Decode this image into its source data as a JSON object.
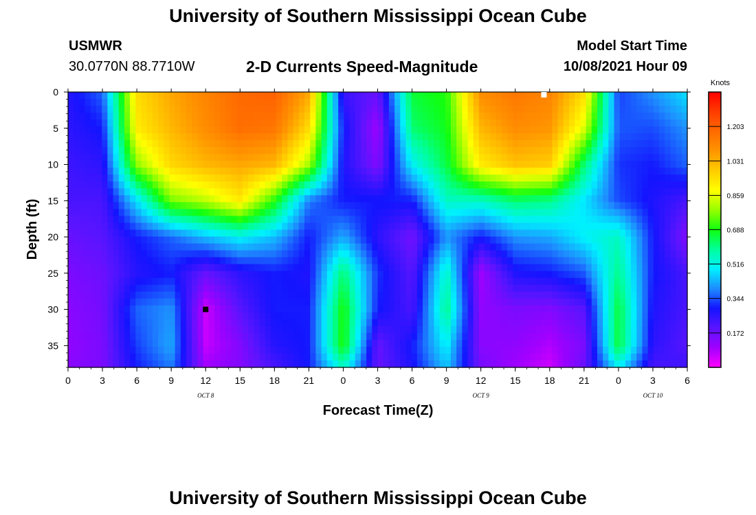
{
  "page": {
    "title_top": "University of Southern Mississippi Ocean Cube",
    "title_bottom": "University of Southern Mississippi Ocean Cube",
    "station_id": "USMWR",
    "station_coords": "30.0770N  88.7710W",
    "plot_title": "2-D Currents Speed-Magnitude",
    "model_start_label": "Model Start Time",
    "model_start_value": "10/08/2021 Hour 09"
  },
  "chart_data": {
    "type": "heatmap",
    "title": "2-D Currents Speed-Magnitude",
    "xlabel": "Forecast Time(Z)",
    "ylabel": "Depth (ft)",
    "x_range_hours": [
      0,
      54
    ],
    "x_ticks": [
      {
        "h": 0,
        "label": "0"
      },
      {
        "h": 3,
        "label": "3"
      },
      {
        "h": 6,
        "label": "6"
      },
      {
        "h": 9,
        "label": "9"
      },
      {
        "h": 12,
        "label": "12"
      },
      {
        "h": 15,
        "label": "15"
      },
      {
        "h": 18,
        "label": "18"
      },
      {
        "h": 21,
        "label": "21"
      },
      {
        "h": 24,
        "label": "0"
      },
      {
        "h": 27,
        "label": "3"
      },
      {
        "h": 30,
        "label": "6"
      },
      {
        "h": 33,
        "label": "9"
      },
      {
        "h": 36,
        "label": "12"
      },
      {
        "h": 39,
        "label": "15"
      },
      {
        "h": 42,
        "label": "18"
      },
      {
        "h": 45,
        "label": "21"
      },
      {
        "h": 48,
        "label": "0"
      },
      {
        "h": 51,
        "label": "3"
      },
      {
        "h": 54,
        "label": "6"
      }
    ],
    "date_labels": [
      {
        "h": 12,
        "label": "OCT 8"
      },
      {
        "h": 36,
        "label": "OCT 9"
      },
      {
        "h": 51,
        "label": "OCT 10"
      }
    ],
    "y_range_ft": [
      0,
      38
    ],
    "y_ticks": [
      0,
      5,
      10,
      15,
      20,
      25,
      30,
      35
    ],
    "colorbar": {
      "label": "Knots",
      "min": 0.0,
      "max": 1.375,
      "tick_values": [
        0.172,
        0.344,
        0.516,
        0.688,
        0.859,
        1.031,
        1.203
      ],
      "tick_labels": [
        "0.172",
        "0.344",
        "0.516",
        "0.688",
        "0.859",
        "1.031",
        "1.203"
      ],
      "colors": [
        "#ff00ff",
        "#a000ff",
        "#5a14ff",
        "#1414ff",
        "#1e8cff",
        "#00f0ff",
        "#00ff9a",
        "#10ff10",
        "#96ff00",
        "#ffff00",
        "#ffcc00",
        "#ff9500",
        "#ff6a00",
        "#ff3c00",
        "#ff0000"
      ]
    },
    "markers": [
      {
        "h": 12,
        "depth_ft": 30,
        "color": "#000000"
      },
      {
        "h": 41.5,
        "depth_ft": 0,
        "color": "#ffffff"
      }
    ],
    "speed_knots_grid": {
      "hours": [
        0,
        3,
        6,
        9,
        12,
        15,
        18,
        21,
        24,
        27,
        30,
        33,
        36,
        39,
        42,
        45,
        48,
        51,
        54
      ],
      "depths_ft": [
        0,
        5,
        10,
        15,
        20,
        25,
        30,
        35,
        38
      ],
      "values": [
        [
          0.27,
          0.36,
          0.95,
          1.05,
          1.12,
          1.18,
          1.2,
          1.05,
          0.24,
          0.18,
          0.66,
          0.7,
          1.1,
          1.15,
          1.12,
          0.95,
          0.33,
          0.4,
          0.48
        ],
        [
          0.26,
          0.3,
          0.92,
          1.02,
          1.1,
          1.17,
          1.15,
          0.95,
          0.3,
          0.1,
          0.62,
          0.68,
          1.02,
          1.1,
          1.08,
          0.85,
          0.35,
          0.34,
          0.4
        ],
        [
          0.24,
          0.26,
          0.78,
          0.96,
          1.02,
          1.05,
          1.02,
          0.8,
          0.28,
          0.14,
          0.5,
          0.65,
          0.92,
          1.0,
          0.98,
          0.62,
          0.32,
          0.3,
          0.36
        ],
        [
          0.22,
          0.22,
          0.48,
          0.76,
          0.82,
          0.92,
          0.7,
          0.38,
          0.3,
          0.3,
          0.3,
          0.55,
          0.55,
          0.62,
          0.6,
          0.48,
          0.34,
          0.28,
          0.22
        ],
        [
          0.18,
          0.2,
          0.3,
          0.36,
          0.44,
          0.5,
          0.44,
          0.3,
          0.42,
          0.26,
          0.16,
          0.4,
          0.3,
          0.4,
          0.42,
          0.5,
          0.55,
          0.3,
          0.14
        ],
        [
          0.15,
          0.17,
          0.27,
          0.3,
          0.18,
          0.26,
          0.3,
          0.28,
          0.62,
          0.32,
          0.2,
          0.55,
          0.1,
          0.28,
          0.3,
          0.35,
          0.6,
          0.3,
          0.22
        ],
        [
          0.13,
          0.16,
          0.36,
          0.4,
          0.05,
          0.2,
          0.3,
          0.3,
          0.7,
          0.3,
          0.22,
          0.6,
          0.12,
          0.15,
          0.14,
          0.2,
          0.66,
          0.28,
          0.22
        ],
        [
          0.12,
          0.15,
          0.33,
          0.42,
          0.06,
          0.14,
          0.27,
          0.3,
          0.7,
          0.18,
          0.3,
          0.5,
          0.13,
          0.12,
          0.08,
          0.15,
          0.66,
          0.26,
          0.2
        ],
        [
          0.13,
          0.15,
          0.3,
          0.38,
          0.1,
          0.14,
          0.22,
          0.3,
          0.55,
          0.18,
          0.28,
          0.45,
          0.16,
          0.1,
          0.05,
          0.18,
          0.5,
          0.22,
          0.24
        ]
      ]
    }
  }
}
